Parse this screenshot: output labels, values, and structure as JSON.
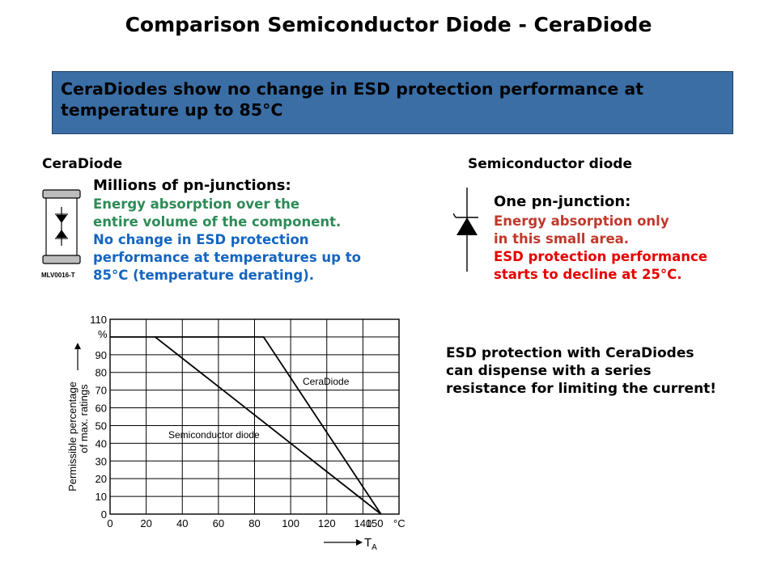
{
  "slide": {
    "title": "Comparison Semiconductor Diode - CeraDiode",
    "banner": "CeraDiodes show no change in ESD protection performance at temperature up to 85°C"
  },
  "ceradiode": {
    "label": "CeraDiode",
    "component_caption": "MLV0016-T",
    "heading": "Millions of pn-junctions:",
    "energy_line1": "Energy absorption over the",
    "energy_line2": "entire volume of the component.",
    "esd_line1": "No change in ESD protection",
    "esd_line2": "performance at temperatures up to",
    "esd_line3": "85°C (temperature derating)."
  },
  "semiconductor": {
    "label": "Semiconductor diode",
    "heading": "One pn-junction:",
    "energy_line1": "Energy absorption only",
    "energy_line2": "in this small area.",
    "esd_line1": "ESD protection performance",
    "esd_line2": "starts to decline at 25°C."
  },
  "note": {
    "line1": "ESD protection with CeraDiodes",
    "line2": "can dispense with a series",
    "line3": "resistance for limiting the current!"
  },
  "colors": {
    "banner": "#3a6ea5",
    "green_text": "#2e8b57",
    "blue_text": "#1565c0",
    "darkred_text": "#c0392b",
    "red_text": "#e60000"
  },
  "chart_data": {
    "type": "line",
    "xlabel_main": "T",
    "xlabel_sub": "A",
    "x_unit": "°C",
    "ylabel_line1": "Permissible percentage",
    "ylabel_line2": "of max. ratings",
    "y_unit": "%",
    "xlim": [
      0,
      160
    ],
    "ylim": [
      0,
      110
    ],
    "x_ticks": [
      0,
      20,
      40,
      60,
      80,
      100,
      120,
      140,
      150
    ],
    "y_ticks": [
      0,
      10,
      20,
      30,
      40,
      50,
      60,
      70,
      80,
      90,
      110
    ],
    "grid": true,
    "series": [
      {
        "name": "CeraDiode",
        "points": [
          [
            0,
            100
          ],
          [
            85,
            100
          ],
          [
            150,
            0
          ]
        ]
      },
      {
        "name": "Semiconductor diode",
        "points": [
          [
            25,
            100
          ],
          [
            150,
            0
          ]
        ]
      }
    ]
  }
}
